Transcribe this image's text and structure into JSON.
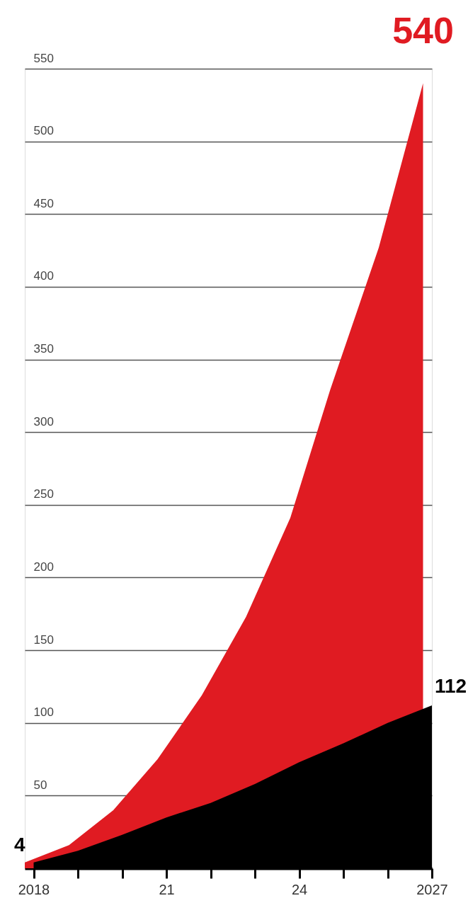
{
  "chart_data": {
    "type": "area",
    "xlim": [
      2017.8,
      2027
    ],
    "xticks": [
      {
        "value": 2018,
        "label": "2018"
      },
      {
        "value": 2019,
        "label": null
      },
      {
        "value": 2020,
        "label": null
      },
      {
        "value": 2021,
        "label": "21"
      },
      {
        "value": 2022,
        "label": null
      },
      {
        "value": 2023,
        "label": null
      },
      {
        "value": 2024,
        "label": "24"
      },
      {
        "value": 2025,
        "label": null
      },
      {
        "value": 2026,
        "label": null
      },
      {
        "value": 2027,
        "label": "2027"
      }
    ],
    "ylim": [
      0,
      550
    ],
    "yticks": [
      {
        "value": 0,
        "label": null
      },
      50,
      100,
      150,
      200,
      250,
      300,
      350,
      400,
      450,
      500,
      550
    ],
    "grid": "y",
    "series": [
      {
        "color": "#e01b22",
        "x": [
          2017.8,
          2018.8,
          2019.8,
          2020.8,
          2021.8,
          2022.8,
          2023.8,
          2024.7,
          2025.8,
          2026.8
        ],
        "values": [
          4,
          16,
          40,
          75,
          119,
          173,
          241,
          329,
          427,
          540
        ]
      },
      {
        "color": "#000000",
        "x": [
          2018,
          2019,
          2020,
          2021,
          2022,
          2023,
          2024,
          2025,
          2026,
          2027
        ],
        "values": [
          4,
          12,
          23,
          35,
          45,
          58,
          73,
          86,
          100,
          112
        ]
      }
    ],
    "annotations": [
      {
        "text": "4",
        "x": 2018,
        "y": 4
      },
      {
        "text": "112",
        "x": 2027,
        "y": 112
      },
      {
        "text": "540",
        "x": 2026.8,
        "y": 540
      }
    ]
  }
}
